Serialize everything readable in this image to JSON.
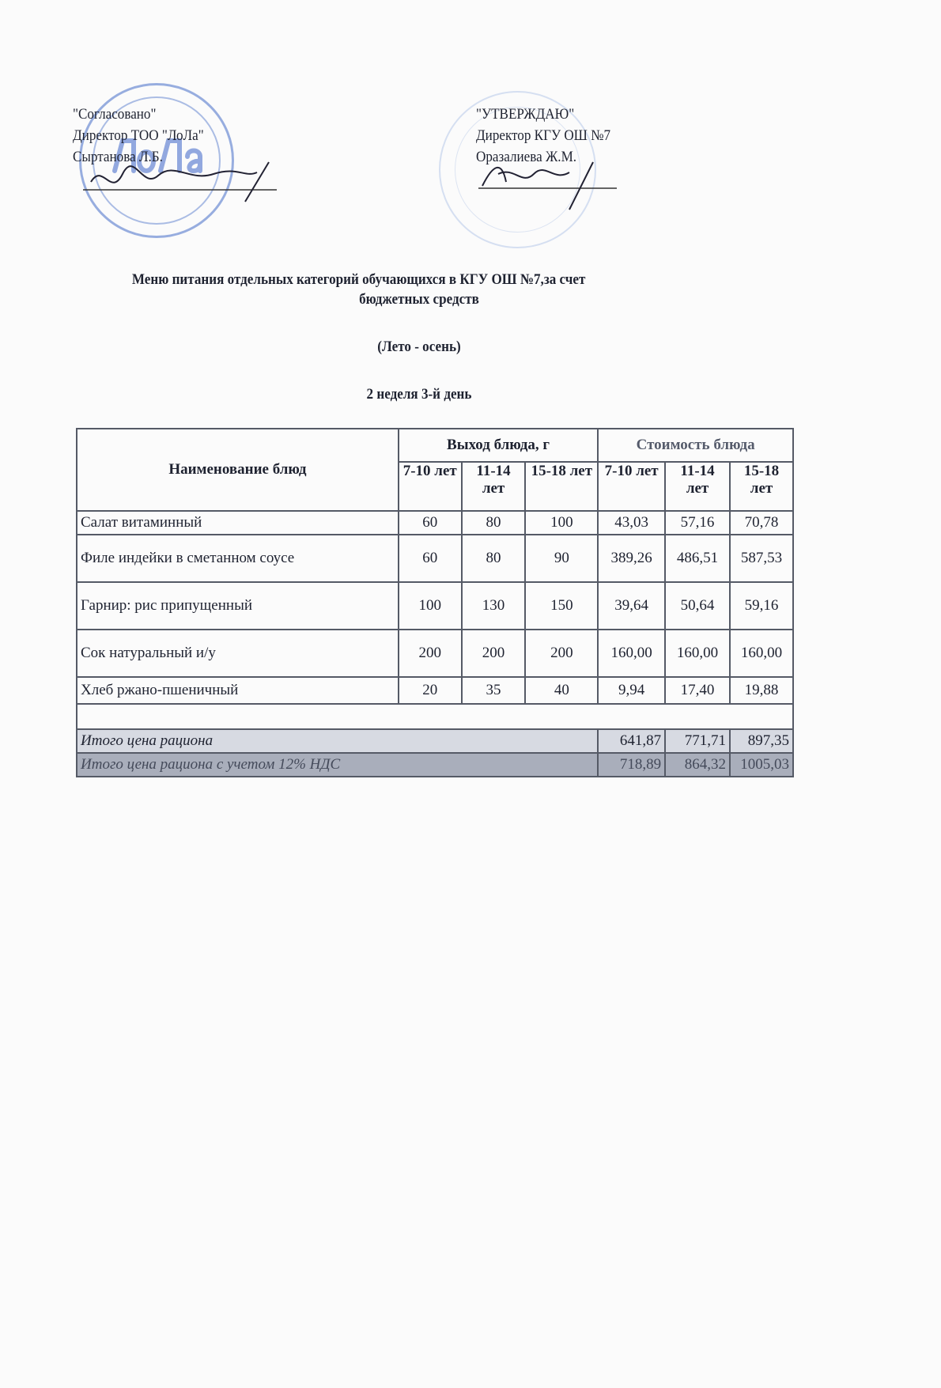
{
  "left_block": {
    "line1": "\"Согласовано\"",
    "line2": "Директор ТОО \"ЛоЛа\"",
    "line3": "Сыртанова Л.Б.",
    "stamp_text": "ЛоЛа"
  },
  "right_block": {
    "line1": "\"УТВЕРЖДАЮ\"",
    "line2": "Директор КГУ ОШ №7",
    "line3": "Оразалиева Ж.М."
  },
  "title": {
    "line1": "Меню питания отдельных   категорий обучающихся в КГУ ОШ №7,за счет",
    "line2": "бюджетных средств",
    "season": "(Лето - осень)",
    "day": "2 неделя 3-й день"
  },
  "table": {
    "col_name": "Наименование блюд",
    "group_yield": "Выход блюда, г",
    "group_cost": "Стоимость блюда",
    "age_cols": [
      "7-10 лет",
      "11-14 лет",
      "15-18 лет",
      "7-10 лет",
      "11-14 лет",
      "15-18 лет"
    ],
    "rows": [
      {
        "name": "Салат витаминный",
        "values": [
          "60",
          "80",
          "100",
          "43,03",
          "57,16",
          "70,78"
        ]
      },
      {
        "name": "Филе индейки в сметанном соусе",
        "values": [
          "60",
          "80",
          "90",
          "389,26",
          "486,51",
          "587,53"
        ]
      },
      {
        "name": "Гарнир: рис припущенный",
        "values": [
          "100",
          "130",
          "150",
          "39,64",
          "50,64",
          "59,16"
        ]
      },
      {
        "name": "Сок натуральный и/у",
        "values": [
          "200",
          "200",
          "200",
          "160,00",
          "160,00",
          "160,00"
        ]
      },
      {
        "name": "Хлеб ржано-пшеничный",
        "values": [
          "20",
          "35",
          "40",
          "9,94",
          "17,40",
          "19,88"
        ]
      }
    ],
    "total": {
      "label": "Итого цена рациона",
      "values": [
        "641,87",
        "771,71",
        "897,35"
      ]
    },
    "total_vat": {
      "label": "Итого цена рациона с учетом 12% НДС",
      "values": [
        "718,89",
        "864,32",
        "1005,03"
      ]
    }
  },
  "colors": {
    "stamp": "#3f6fd0",
    "ink": "#1e2230"
  }
}
